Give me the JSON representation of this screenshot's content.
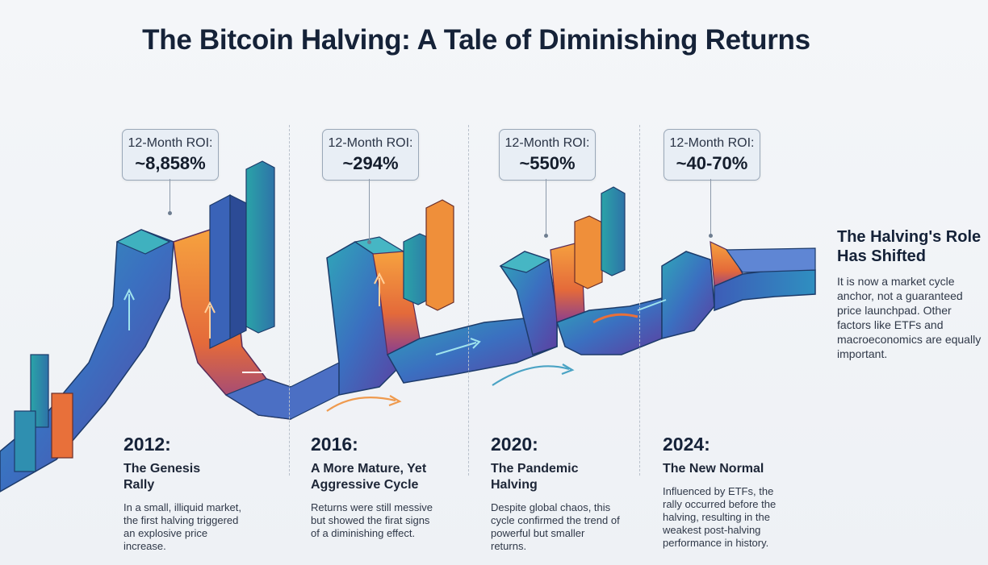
{
  "title": "The Bitcoin Halving: A Tale of Diminishing Returns",
  "cycles": [
    {
      "year": "2012:",
      "name": "The Genesis Rally",
      "roi_label": "12-Month ROI:",
      "roi_value": "~8,858%",
      "description": "In a small, illiquid market, the first halving triggered an explosive price increase."
    },
    {
      "year": "2016:",
      "name": "A More Mature, Yet Aggressive Cycle",
      "roi_label": "12-Month ROI:",
      "roi_value": "~294%",
      "description": "Returns were still messive but showed the firat signs of a diminishing effect."
    },
    {
      "year": "2020:",
      "name": "The Pandemic Halving",
      "roi_label": "12-Month ROI:",
      "roi_value": "~550%",
      "description": "Despite global chaos, this cycle confirmed the trend of powerful but smaller returns."
    },
    {
      "year": "2024:",
      "name": "The New Normal",
      "roi_label": "12-Month ROI:",
      "roi_value": "~40-70%",
      "description": "Influenced by ETFs, the rally occurred before the halving, resulting in the weakest post-halving performance in history."
    }
  ],
  "conclusion": {
    "title": "The Halving's Role Has Shifted",
    "description": "It is now a market cycle anchor, not a guaranteed price launchpad. Other factors like ETFs and macroeconomics are equally important."
  },
  "colors": {
    "teal": "#2a8fb0",
    "blue": "#3c5fb8",
    "purple": "#6b4aa8",
    "orange": "#ef8f3a",
    "red_orange": "#e2603a",
    "ink": "#152238"
  }
}
